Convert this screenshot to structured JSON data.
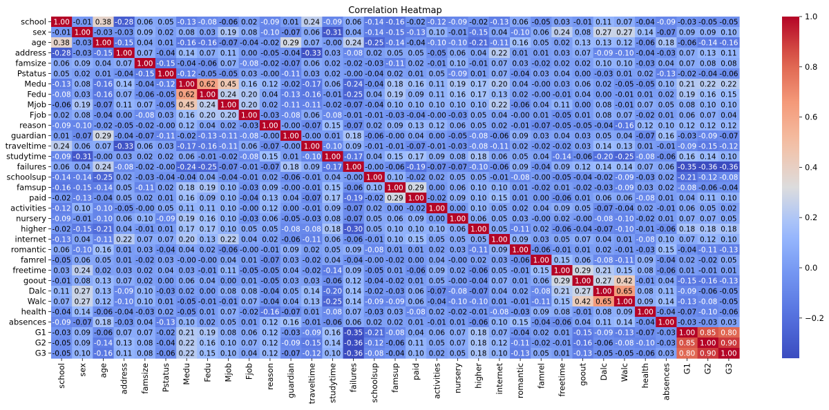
{
  "chart_data": {
    "type": "heatmap",
    "title": "Correlation Heatmap",
    "xlabel": "",
    "ylabel": "",
    "colormap": "coolwarm",
    "value_range": [
      -0.36,
      1.0
    ],
    "colorbar_ticks": [
      1.0,
      0.8,
      0.6,
      0.4,
      0.2,
      0.0,
      -0.2
    ],
    "colorbar_tick_labels": [
      "1.0",
      "0.8",
      "0.6",
      "0.4",
      "0.2",
      "0.0",
      "−0.2"
    ],
    "colorbar_position": "right",
    "colors": {
      "low": "#3b4cc0",
      "mid": "#dddddd",
      "high": "#b40426"
    },
    "annotation_format": "0.00",
    "variables": [
      "school",
      "sex",
      "age",
      "address",
      "famsize",
      "Pstatus",
      "Medu",
      "Fedu",
      "Mjob",
      "Fjob",
      "reason",
      "guardian",
      "traveltime",
      "studytime",
      "failures",
      "schoolsup",
      "famsup",
      "paid",
      "activities",
      "nursery",
      "higher",
      "internet",
      "romantic",
      "famrel",
      "freetime",
      "goout",
      "Dalc",
      "Walc",
      "health",
      "absences",
      "G1",
      "G2",
      "G3"
    ],
    "matrix": [
      [
        1.0,
        -0.01,
        0.38,
        -0.28,
        0.06,
        0.05,
        -0.13,
        -0.08,
        -0.06,
        0.02,
        -0.09,
        0.01,
        0.24,
        -0.09,
        0.06,
        -0.14,
        -0.16,
        -0.02,
        -0.12,
        -0.09,
        -0.02,
        -0.13,
        0.06,
        -0.05,
        0.03,
        -0.01,
        0.11,
        0.07,
        -0.04,
        -0.09,
        -0.03,
        -0.05,
        -0.05
      ],
      [
        -0.01,
        1.0,
        -0.03,
        -0.03,
        0.09,
        0.02,
        0.08,
        0.03,
        0.19,
        0.08,
        -0.1,
        -0.07,
        0.06,
        -0.31,
        0.04,
        -0.14,
        -0.15,
        -0.13,
        0.1,
        -0.01,
        -0.15,
        0.04,
        -0.1,
        0.06,
        0.24,
        0.08,
        0.27,
        0.27,
        0.14,
        -0.07,
        0.09,
        0.09,
        0.1
      ],
      [
        0.38,
        -0.03,
        1.0,
        -0.15,
        0.04,
        0.01,
        -0.16,
        -0.16,
        -0.07,
        -0.04,
        -0.02,
        0.29,
        0.07,
        -0.0,
        0.24,
        -0.25,
        -0.14,
        -0.04,
        -0.1,
        -0.1,
        -0.21,
        -0.11,
        0.16,
        0.05,
        0.02,
        0.13,
        0.13,
        0.12,
        -0.06,
        0.18,
        -0.06,
        -0.14,
        -0.16
      ],
      [
        -0.28,
        -0.03,
        -0.15,
        1.0,
        0.07,
        -0.04,
        0.14,
        0.07,
        0.11,
        0.0,
        -0.05,
        -0.04,
        -0.33,
        0.03,
        -0.08,
        0.02,
        0.05,
        0.05,
        -0.05,
        0.06,
        0.04,
        0.22,
        0.01,
        0.01,
        0.03,
        0.07,
        -0.09,
        -0.1,
        -0.04,
        -0.03,
        0.07,
        0.13,
        0.11
      ],
      [
        0.06,
        0.09,
        0.04,
        0.07,
        1.0,
        -0.15,
        -0.04,
        -0.06,
        0.07,
        -0.08,
        -0.02,
        -0.07,
        0.06,
        0.02,
        -0.02,
        -0.03,
        -0.11,
        0.02,
        -0.01,
        0.1,
        -0.01,
        0.07,
        0.03,
        -0.02,
        0.02,
        0.02,
        0.1,
        0.1,
        -0.03,
        0.04,
        0.07,
        0.08,
        0.08
      ],
      [
        0.05,
        0.02,
        0.01,
        -0.04,
        -0.15,
        1.0,
        -0.12,
        -0.05,
        -0.05,
        0.03,
        -0.0,
        -0.11,
        0.03,
        0.02,
        -0.0,
        -0.04,
        0.02,
        0.01,
        0.05,
        -0.09,
        0.01,
        0.07,
        -0.04,
        0.03,
        0.04,
        0.0,
        -0.03,
        0.01,
        0.02,
        -0.13,
        -0.02,
        -0.04,
        -0.06
      ],
      [
        -0.13,
        0.08,
        -0.16,
        0.14,
        -0.04,
        -0.12,
        1.0,
        0.62,
        0.45,
        0.16,
        0.12,
        -0.02,
        -0.17,
        0.06,
        -0.24,
        -0.04,
        0.18,
        0.16,
        0.11,
        0.19,
        0.17,
        0.2,
        0.04,
        -0.0,
        0.03,
        0.06,
        0.02,
        -0.05,
        -0.05,
        0.1,
        0.21,
        0.22,
        0.22
      ],
      [
        -0.08,
        0.03,
        -0.16,
        0.07,
        -0.06,
        -0.05,
        0.62,
        1.0,
        0.24,
        0.2,
        0.04,
        -0.13,
        -0.16,
        -0.01,
        -0.25,
        0.04,
        0.19,
        0.09,
        0.11,
        0.16,
        0.17,
        0.13,
        0.02,
        -0.0,
        -0.01,
        0.04,
        0.0,
        -0.01,
        0.01,
        0.02,
        0.19,
        0.16,
        0.15
      ],
      [
        -0.06,
        0.19,
        -0.07,
        0.11,
        0.07,
        -0.05,
        0.45,
        0.24,
        1.0,
        0.2,
        0.02,
        -0.11,
        -0.11,
        -0.02,
        -0.07,
        -0.04,
        0.1,
        0.1,
        0.1,
        0.1,
        0.1,
        0.22,
        -0.06,
        0.04,
        0.11,
        0.0,
        0.08,
        -0.01,
        0.07,
        0.05,
        0.08,
        0.1,
        0.1
      ],
      [
        0.02,
        0.08,
        -0.04,
        0.0,
        -0.08,
        0.03,
        0.16,
        0.2,
        0.2,
        1.0,
        -0.03,
        -0.08,
        0.06,
        -0.08,
        -0.01,
        -0.01,
        -0.03,
        -0.04,
        -0.0,
        -0.03,
        0.05,
        0.04,
        -0.0,
        0.01,
        -0.05,
        0.01,
        0.08,
        0.07,
        -0.02,
        0.01,
        0.06,
        0.07,
        0.04
      ],
      [
        -0.09,
        -0.1,
        -0.02,
        -0.05,
        -0.02,
        -0.0,
        0.12,
        0.04,
        0.02,
        -0.03,
        1.0,
        -0.0,
        -0.07,
        0.15,
        -0.07,
        0.02,
        0.09,
        0.13,
        0.12,
        0.06,
        0.05,
        0.02,
        -0.01,
        -0.07,
        -0.05,
        -0.05,
        -0.04,
        -0.16,
        0.12,
        0.1,
        0.12,
        0.12,
        0.12
      ],
      [
        0.01,
        -0.07,
        0.29,
        -0.04,
        -0.07,
        -0.11,
        -0.02,
        -0.13,
        -0.11,
        -0.08,
        -0.0,
        1.0,
        -0.0,
        0.01,
        0.18,
        -0.06,
        -0.0,
        0.04,
        0.0,
        -0.05,
        -0.08,
        -0.06,
        0.09,
        0.03,
        0.04,
        0.03,
        0.05,
        0.04,
        -0.07,
        0.16,
        -0.03,
        -0.09,
        -0.07
      ],
      [
        0.24,
        0.06,
        0.07,
        -0.33,
        0.06,
        0.03,
        -0.17,
        -0.16,
        -0.11,
        0.06,
        -0.07,
        -0.0,
        1.0,
        -0.1,
        0.09,
        -0.01,
        -0.01,
        -0.07,
        -0.01,
        -0.03,
        -0.08,
        -0.11,
        0.02,
        -0.02,
        -0.02,
        0.03,
        0.14,
        0.13,
        0.01,
        -0.01,
        -0.09,
        -0.15,
        -0.12
      ],
      [
        -0.09,
        -0.31,
        -0.0,
        0.03,
        0.02,
        0.02,
        0.06,
        -0.01,
        -0.02,
        -0.08,
        0.15,
        0.01,
        -0.1,
        1.0,
        -0.17,
        0.04,
        0.15,
        0.17,
        0.09,
        0.08,
        0.18,
        0.06,
        0.05,
        0.04,
        -0.14,
        -0.06,
        -0.2,
        -0.25,
        -0.08,
        -0.06,
        0.16,
        0.14,
        0.1
      ],
      [
        0.06,
        0.04,
        0.24,
        -0.08,
        -0.02,
        -0.0,
        -0.24,
        -0.25,
        -0.07,
        -0.01,
        -0.07,
        0.18,
        0.09,
        -0.17,
        1.0,
        -0.0,
        -0.06,
        -0.19,
        -0.07,
        -0.07,
        -0.1,
        -0.06,
        0.09,
        -0.04,
        0.09,
        0.12,
        0.14,
        0.14,
        0.07,
        0.06,
        -0.35,
        -0.36,
        -0.36
      ],
      [
        -0.14,
        -0.14,
        -0.25,
        0.02,
        -0.03,
        -0.04,
        -0.04,
        0.04,
        -0.04,
        -0.01,
        0.02,
        -0.06,
        -0.01,
        0.04,
        -0.0,
        1.0,
        0.1,
        -0.02,
        0.02,
        0.05,
        0.05,
        -0.01,
        -0.08,
        -0.0,
        -0.05,
        -0.04,
        -0.02,
        -0.09,
        -0.03,
        0.02,
        -0.21,
        -0.12,
        -0.08
      ],
      [
        -0.16,
        -0.15,
        -0.14,
        0.05,
        -0.11,
        0.02,
        0.18,
        0.19,
        0.1,
        -0.03,
        0.09,
        -0.0,
        -0.01,
        0.15,
        -0.06,
        0.1,
        1.0,
        0.29,
        0.0,
        0.06,
        0.1,
        0.1,
        0.01,
        -0.02,
        0.01,
        -0.02,
        -0.03,
        -0.09,
        0.03,
        0.02,
        -0.08,
        -0.06,
        -0.04
      ],
      [
        -0.02,
        -0.13,
        -0.04,
        0.05,
        0.02,
        0.01,
        0.16,
        0.09,
        0.1,
        -0.04,
        0.13,
        0.04,
        -0.07,
        0.17,
        -0.19,
        -0.02,
        0.29,
        1.0,
        -0.02,
        0.09,
        0.1,
        0.15,
        0.01,
        0.0,
        -0.06,
        0.01,
        0.06,
        0.06,
        -0.08,
        0.01,
        0.04,
        0.11,
        0.1
      ],
      [
        -0.12,
        0.1,
        -0.1,
        -0.05,
        -0.0,
        0.05,
        0.11,
        0.11,
        0.1,
        -0.0,
        0.12,
        0.0,
        -0.01,
        0.09,
        -0.07,
        0.02,
        0.0,
        -0.02,
        1.0,
        0.0,
        0.1,
        0.05,
        0.02,
        0.04,
        0.09,
        0.05,
        -0.07,
        -0.04,
        0.02,
        -0.01,
        0.06,
        0.05,
        0.02
      ],
      [
        -0.09,
        -0.01,
        -0.1,
        0.06,
        0.1,
        -0.09,
        0.19,
        0.16,
        0.1,
        -0.03,
        0.06,
        -0.05,
        -0.03,
        0.08,
        -0.07,
        0.05,
        0.06,
        0.09,
        0.0,
        1.0,
        0.06,
        0.05,
        0.03,
        -0.0,
        0.02,
        -0.0,
        -0.08,
        -0.1,
        -0.02,
        0.01,
        0.07,
        0.07,
        0.05
      ],
      [
        -0.02,
        -0.15,
        -0.21,
        0.04,
        -0.01,
        0.01,
        0.17,
        0.17,
        0.1,
        0.05,
        0.05,
        -0.08,
        -0.08,
        0.18,
        -0.3,
        0.05,
        0.1,
        0.1,
        0.1,
        0.06,
        1.0,
        0.05,
        -0.11,
        0.02,
        -0.06,
        -0.04,
        -0.07,
        -0.1,
        -0.01,
        -0.06,
        0.18,
        0.18,
        0.18
      ],
      [
        -0.13,
        0.04,
        -0.11,
        0.22,
        0.07,
        0.07,
        0.2,
        0.13,
        0.22,
        0.04,
        0.02,
        -0.06,
        -0.11,
        0.06,
        -0.06,
        -0.01,
        0.1,
        0.15,
        0.05,
        0.05,
        0.05,
        1.0,
        0.09,
        0.03,
        0.05,
        0.07,
        0.04,
        0.01,
        -0.08,
        0.1,
        0.07,
        0.12,
        0.1
      ],
      [
        0.06,
        -0.1,
        0.16,
        0.01,
        0.03,
        -0.04,
        0.04,
        0.02,
        -0.06,
        -0.0,
        -0.01,
        0.09,
        0.02,
        0.05,
        0.09,
        -0.08,
        0.01,
        0.01,
        0.02,
        0.03,
        -0.11,
        0.09,
        1.0,
        -0.06,
        -0.01,
        0.01,
        0.02,
        -0.01,
        -0.03,
        0.15,
        -0.04,
        -0.11,
        -0.13
      ],
      [
        -0.05,
        0.06,
        0.05,
        0.01,
        -0.02,
        0.03,
        -0.0,
        -0.0,
        0.04,
        0.01,
        -0.07,
        0.03,
        -0.02,
        0.04,
        -0.04,
        -0.0,
        -0.02,
        0.0,
        0.04,
        -0.0,
        0.02,
        0.03,
        -0.06,
        1.0,
        0.15,
        0.06,
        -0.08,
        -0.11,
        0.09,
        -0.04,
        0.02,
        -0.02,
        0.05
      ],
      [
        0.03,
        0.24,
        0.02,
        0.03,
        0.02,
        0.04,
        0.03,
        -0.01,
        0.11,
        -0.05,
        -0.05,
        0.04,
        -0.02,
        -0.14,
        0.09,
        -0.05,
        0.01,
        -0.06,
        0.09,
        0.02,
        -0.06,
        0.05,
        -0.01,
        0.15,
        1.0,
        0.29,
        0.21,
        0.15,
        0.08,
        -0.06,
        0.01,
        -0.01,
        0.01
      ],
      [
        -0.01,
        0.08,
        0.13,
        0.07,
        0.02,
        0.0,
        0.06,
        0.04,
        0.0,
        0.01,
        -0.05,
        0.03,
        0.03,
        -0.06,
        0.12,
        -0.04,
        -0.02,
        0.01,
        0.05,
        -0.0,
        -0.04,
        0.07,
        0.01,
        0.06,
        0.29,
        1.0,
        0.27,
        0.42,
        -0.01,
        0.04,
        -0.15,
        -0.16,
        -0.13
      ],
      [
        0.11,
        0.27,
        0.13,
        -0.09,
        0.1,
        -0.03,
        0.02,
        0.0,
        0.08,
        0.08,
        -0.04,
        0.05,
        0.14,
        -0.2,
        0.14,
        -0.02,
        -0.03,
        0.06,
        -0.07,
        -0.08,
        -0.07,
        0.04,
        0.02,
        -0.08,
        0.21,
        0.27,
        1.0,
        0.65,
        0.08,
        0.11,
        -0.09,
        -0.06,
        -0.05
      ],
      [
        0.07,
        0.27,
        0.12,
        -0.1,
        0.1,
        0.01,
        -0.05,
        -0.01,
        -0.01,
        0.07,
        -0.04,
        0.04,
        0.13,
        -0.25,
        0.14,
        -0.09,
        -0.09,
        0.06,
        -0.04,
        -0.1,
        -0.1,
        0.01,
        -0.01,
        -0.11,
        0.15,
        0.42,
        0.65,
        1.0,
        0.09,
        0.14,
        -0.13,
        -0.08,
        -0.05
      ],
      [
        -0.04,
        0.14,
        -0.06,
        -0.04,
        -0.03,
        0.02,
        -0.05,
        0.01,
        0.07,
        -0.02,
        -0.16,
        -0.07,
        0.01,
        -0.08,
        0.07,
        -0.03,
        0.03,
        -0.08,
        0.02,
        -0.02,
        -0.01,
        -0.08,
        -0.03,
        0.09,
        0.08,
        -0.01,
        0.08,
        0.09,
        1.0,
        -0.04,
        -0.07,
        -0.1,
        -0.06
      ],
      [
        -0.09,
        -0.07,
        0.18,
        -0.03,
        0.04,
        -0.13,
        0.1,
        0.02,
        0.05,
        0.01,
        0.12,
        0.16,
        -0.01,
        -0.06,
        0.06,
        0.02,
        0.02,
        0.01,
        -0.01,
        0.01,
        -0.06,
        0.1,
        0.15,
        -0.04,
        -0.06,
        0.04,
        0.11,
        0.14,
        -0.04,
        1.0,
        -0.03,
        -0.03,
        0.03
      ],
      [
        -0.03,
        0.09,
        -0.06,
        0.07,
        0.07,
        -0.02,
        0.21,
        0.19,
        0.08,
        0.06,
        0.12,
        -0.03,
        -0.09,
        0.16,
        -0.35,
        -0.21,
        -0.08,
        0.04,
        0.06,
        0.07,
        0.18,
        0.07,
        -0.04,
        0.02,
        0.01,
        -0.15,
        -0.09,
        -0.13,
        -0.07,
        -0.03,
        1.0,
        0.85,
        0.8
      ],
      [
        -0.05,
        0.09,
        -0.14,
        0.13,
        0.08,
        -0.04,
        0.22,
        0.16,
        0.1,
        0.07,
        0.12,
        -0.09,
        -0.15,
        0.14,
        -0.36,
        -0.12,
        -0.06,
        0.11,
        0.05,
        0.07,
        0.18,
        0.12,
        -0.11,
        -0.02,
        -0.01,
        -0.16,
        -0.06,
        -0.08,
        -0.1,
        -0.03,
        0.85,
        1.0,
        0.9
      ],
      [
        -0.05,
        0.1,
        -0.16,
        0.11,
        0.08,
        -0.06,
        0.22,
        0.15,
        0.1,
        0.04,
        0.12,
        -0.07,
        -0.12,
        0.1,
        -0.36,
        -0.08,
        -0.04,
        0.1,
        0.02,
        0.05,
        0.18,
        0.1,
        -0.13,
        0.05,
        0.01,
        -0.13,
        -0.05,
        -0.05,
        -0.06,
        0.03,
        0.8,
        0.9,
        1.0
      ]
    ]
  }
}
